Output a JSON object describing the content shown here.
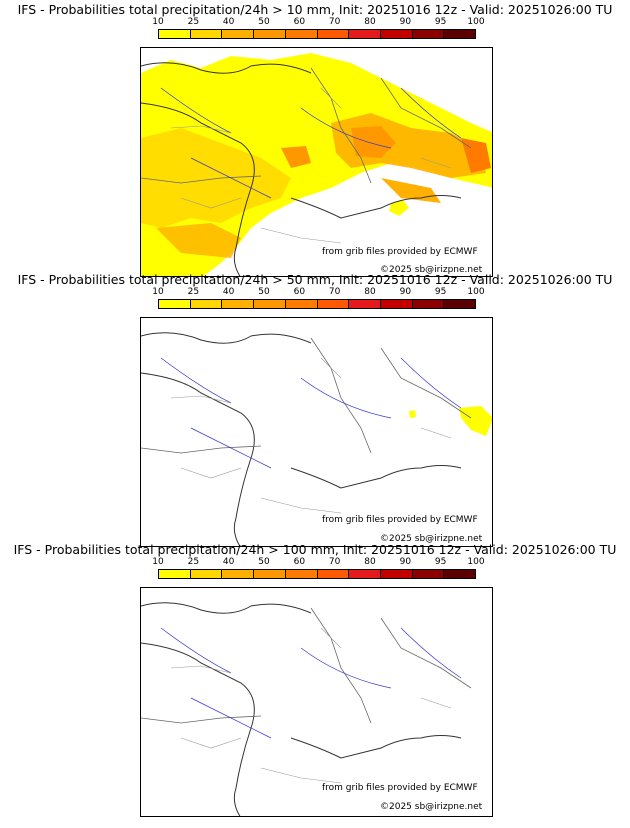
{
  "colorbar": {
    "ticks": [
      "10",
      "25",
      "40",
      "50",
      "60",
      "70",
      "80",
      "90",
      "95",
      "100"
    ],
    "colors": [
      "#ffff00",
      "#ffd700",
      "#ffb000",
      "#ff9800",
      "#ff7b00",
      "#ff5a00",
      "#e41a1c",
      "#c20000",
      "#8b0000",
      "#5a0000"
    ]
  },
  "panels": [
    {
      "title": "IFS - Probabilities total precipitation/24h > 10 mm, Init: 20251016 12z - Valid: 20251026:00 TU",
      "probability_coverage": "widespread",
      "credit_source": "from grib files provided by ECMWF",
      "credit_copyright": "©2025 sb@irizpne.net"
    },
    {
      "title": "IFS - Probabilities total precipitation/24h > 50 mm, Init: 20251016 12z - Valid: 20251026:00 TU",
      "probability_coverage": "minimal",
      "credit_source": "from grib files provided by ECMWF",
      "credit_copyright": "©2025 sb@irizpne.net"
    },
    {
      "title": "IFS - Probabilities total precipitation/24h > 100 mm, Init: 20251016 12z - Valid: 20251026:00 TU",
      "probability_coverage": "none",
      "credit_source": "from grib files provided by ECMWF",
      "credit_copyright": "©2025 sb@irizpne.net"
    }
  ]
}
